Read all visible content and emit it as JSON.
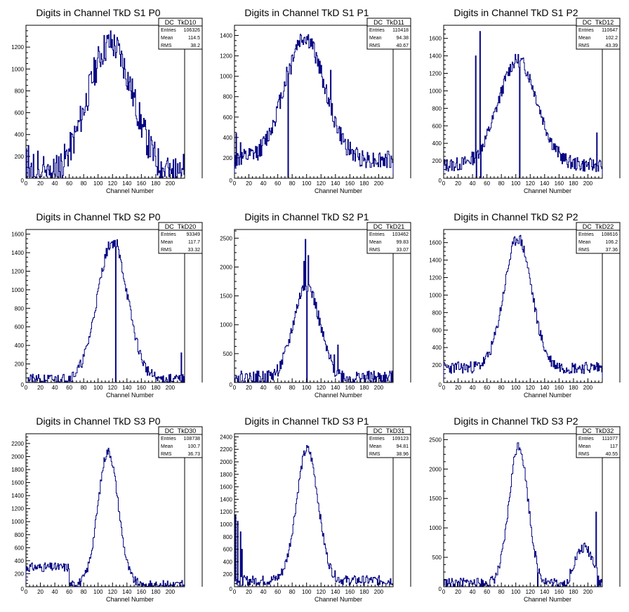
{
  "chart_data": [
    {
      "type": "histogram",
      "title": "Digits in Channel TkD S1 P0",
      "xlabel": "Channel Number",
      "xticks": [
        0,
        20,
        40,
        60,
        80,
        100,
        120,
        140,
        160,
        180,
        200
      ],
      "yticks": [
        200,
        400,
        600,
        800,
        1000,
        1200
      ],
      "xlim": [
        0,
        220
      ],
      "ylim": [
        0,
        1400
      ],
      "stats": {
        "name": "DC_TkD10",
        "entries": "106326",
        "mean": "114.5",
        "rms": "38.2"
      },
      "profile": {
        "base": 0,
        "peak": 1230,
        "center": 117,
        "sigma": 32,
        "noise": 150,
        "seed": 11,
        "spikes": [
          [
            0,
            270
          ],
          [
            3,
            300
          ],
          [
            10,
            220
          ],
          [
            16,
            250
          ],
          [
            24,
            200
          ],
          [
            195,
            160
          ],
          [
            207,
            180
          ],
          [
            218,
            220
          ]
        ]
      }
    },
    {
      "type": "histogram",
      "title": "Digits in Channel TkD S1 P1",
      "xlabel": "Channel Number",
      "xticks": [
        0,
        20,
        40,
        60,
        80,
        100,
        120,
        140,
        160,
        180,
        200
      ],
      "yticks": [
        200,
        400,
        600,
        800,
        1000,
        1200,
        1400
      ],
      "xlim": [
        0,
        220
      ],
      "ylim": [
        0,
        1500
      ],
      "stats": {
        "name": "DC_TkD11",
        "entries": "110418",
        "mean": "94.38",
        "rms": "40.67"
      },
      "profile": {
        "base": 180,
        "peak": 1200,
        "center": 97,
        "sigma": 28,
        "noise": 90,
        "seed": 12,
        "spikes": [
          [
            72,
            1090
          ],
          [
            74,
            10
          ],
          [
            78,
            1020
          ],
          [
            133,
            1060
          ],
          [
            2,
            440
          ],
          [
            8,
            350
          ]
        ]
      }
    },
    {
      "type": "histogram",
      "title": "Digits in Channel TkD S1 P2",
      "xlabel": "Channel Number",
      "xticks": [
        0,
        10,
        20,
        30,
        40,
        50,
        60,
        70,
        80,
        90,
        100,
        110,
        120,
        130,
        140,
        150,
        160,
        170,
        180,
        190,
        200,
        210
      ],
      "xticklabels": [
        "0",
        "20",
        "40",
        "60",
        "80",
        "100",
        "120",
        "140",
        "160",
        "180",
        "200"
      ],
      "yticks": [
        200,
        400,
        600,
        800,
        1000,
        1200,
        1400,
        1600
      ],
      "xlim": [
        0,
        220
      ],
      "ylim": [
        0,
        1750
      ],
      "stats": {
        "name": "DC_TkD12",
        "entries": "110647",
        "mean": "102.2",
        "rms": "43.39"
      },
      "profile": {
        "base": 150,
        "peak": 1200,
        "center": 103,
        "sigma": 27,
        "noise": 80,
        "seed": 13,
        "spikes": [
          [
            44,
            1400
          ],
          [
            45,
            10
          ],
          [
            50,
            1680
          ],
          [
            51,
            10
          ],
          [
            105,
            10
          ],
          [
            212,
            520
          ]
        ]
      }
    },
    {
      "type": "histogram",
      "title": "Digits in Channel TkD S2 P0",
      "xlabel": "Channel Number",
      "xticks": [
        0,
        20,
        40,
        60,
        80,
        100,
        120,
        140,
        160,
        180,
        200
      ],
      "yticks": [
        200,
        400,
        600,
        800,
        1000,
        1200,
        1400,
        1600
      ],
      "xlim": [
        0,
        220
      ],
      "ylim": [
        0,
        1650
      ],
      "stats": {
        "name": "DC_TkD20",
        "entries": "93349",
        "mean": "117.7",
        "rms": "33.32"
      },
      "profile": {
        "base": 30,
        "peak": 1480,
        "center": 120,
        "sigma": 21,
        "noise": 60,
        "seed": 21,
        "spikes": [
          [
            124,
            10
          ],
          [
            126,
            1540
          ],
          [
            215,
            320
          ]
        ]
      }
    },
    {
      "type": "histogram",
      "title": "Digits in Channel TkD S2 P1",
      "xlabel": "Channel Number",
      "xticks": [
        0,
        20,
        40,
        60,
        80,
        100,
        120,
        140,
        160,
        180,
        200
      ],
      "yticks": [
        500,
        1000,
        1500,
        2000,
        2500
      ],
      "xlim": [
        0,
        220
      ],
      "ylim": [
        0,
        2650
      ],
      "stats": {
        "name": "DC_TkD21",
        "entries": "103462",
        "mean": "99.83",
        "rms": "33.07"
      },
      "profile": {
        "base": 80,
        "peak": 1600,
        "center": 100,
        "sigma": 18,
        "noise": 120,
        "seed": 22,
        "spikes": [
          [
            96,
            2100
          ],
          [
            98,
            2480
          ],
          [
            100,
            10
          ],
          [
            102,
            2200
          ],
          [
            143,
            650
          ],
          [
            138,
            480
          ]
        ]
      }
    },
    {
      "type": "histogram",
      "title": "Digits in Channel TkD S2 P2",
      "xlabel": "Channel Number",
      "xticks": [
        0,
        10,
        20,
        30,
        40,
        50,
        60,
        70,
        80,
        90,
        100,
        110,
        120,
        130,
        140,
        150,
        160,
        170,
        180,
        190,
        200,
        210
      ],
      "xticklabels": [
        "0",
        "20",
        "40",
        "60",
        "80",
        "100",
        "120",
        "140",
        "160",
        "180",
        "200"
      ],
      "yticks": [
        200,
        400,
        600,
        800,
        1000,
        1200,
        1400,
        1600
      ],
      "xlim": [
        0,
        220
      ],
      "ylim": [
        0,
        1750
      ],
      "stats": {
        "name": "DC_TkD22",
        "entries": "108616",
        "mean": "106.2",
        "rms": "37.36"
      },
      "profile": {
        "base": 170,
        "peak": 1480,
        "center": 103,
        "sigma": 19,
        "noise": 70,
        "seed": 23,
        "spikes": [
          [
            212,
            230
          ]
        ]
      }
    },
    {
      "type": "histogram",
      "title": "Digits in Channel TkD S3 P0",
      "xlabel": "Channel Number",
      "xticks": [
        0,
        20,
        40,
        60,
        80,
        100,
        120,
        140,
        160,
        180,
        200
      ],
      "yticks": [
        200,
        400,
        600,
        800,
        1000,
        1200,
        1400,
        1600,
        1800,
        2000,
        2200
      ],
      "xlim": [
        0,
        220
      ],
      "ylim": [
        0,
        2350
      ],
      "stats": {
        "name": "DC_TkD30",
        "entries": "108738",
        "mean": "100.7",
        "rms": "36.73"
      },
      "profile": {
        "base": 30,
        "peak": 2050,
        "center": 114,
        "sigma": 14,
        "noise": 70,
        "seed": 31,
        "leftshelf": [
          [
            0,
            60,
            300
          ]
        ]
      }
    },
    {
      "type": "histogram",
      "title": "Digits in Channel TkD S3 P1",
      "xlabel": "Channel Number",
      "xticks": [
        0,
        20,
        40,
        60,
        80,
        100,
        120,
        140,
        160,
        180,
        200
      ],
      "yticks": [
        200,
        400,
        600,
        800,
        1000,
        1200,
        1400,
        1600,
        1800,
        2000,
        2200,
        2400
      ],
      "xlim": [
        0,
        220
      ],
      "ylim": [
        0,
        2450
      ],
      "stats": {
        "name": "DC_TkD31",
        "entries": "109123",
        "mean": "94.81",
        "rms": "38.96"
      },
      "profile": {
        "base": 100,
        "peak": 2100,
        "center": 101,
        "sigma": 15,
        "noise": 80,
        "seed": 32,
        "spikes": [
          [
            1,
            1150
          ],
          [
            4,
            1050
          ],
          [
            8,
            880
          ],
          [
            10,
            600
          ],
          [
            7,
            10
          ]
        ]
      }
    },
    {
      "type": "histogram",
      "title": "Digits in Channel TkD S3 P2",
      "xlabel": "Channel Number",
      "xticks": [
        0,
        10,
        20,
        30,
        40,
        50,
        60,
        70,
        80,
        90,
        100,
        110,
        120,
        130,
        140,
        150,
        160,
        170,
        180,
        190,
        200,
        210
      ],
      "xticklabels": [
        "0",
        "20",
        "40",
        "60",
        "80",
        "100",
        "120",
        "140",
        "160",
        "180",
        "200"
      ],
      "yticks": [
        500,
        1000,
        1500,
        2000,
        2500
      ],
      "xlim": [
        0,
        220
      ],
      "ylim": [
        0,
        2600
      ],
      "stats": {
        "name": "DC_TkD32",
        "entries": "111077",
        "mean": "117",
        "rms": "40.55"
      },
      "profile": {
        "base": 60,
        "peak": 2350,
        "center": 104,
        "sigma": 13,
        "noise": 90,
        "seed": 33,
        "rightbump": [
          [
            175,
            215,
            600
          ]
        ],
        "spikes": [
          [
            211,
            1270
          ],
          [
            213,
            10
          ],
          [
            130,
            10
          ]
        ]
      }
    }
  ],
  "labels": {
    "entries": "Entries",
    "mean": "Mean",
    "rms": "RMS"
  },
  "colors": {
    "line": "#000080",
    "frame": "#000000",
    "background": "#ffffff"
  }
}
